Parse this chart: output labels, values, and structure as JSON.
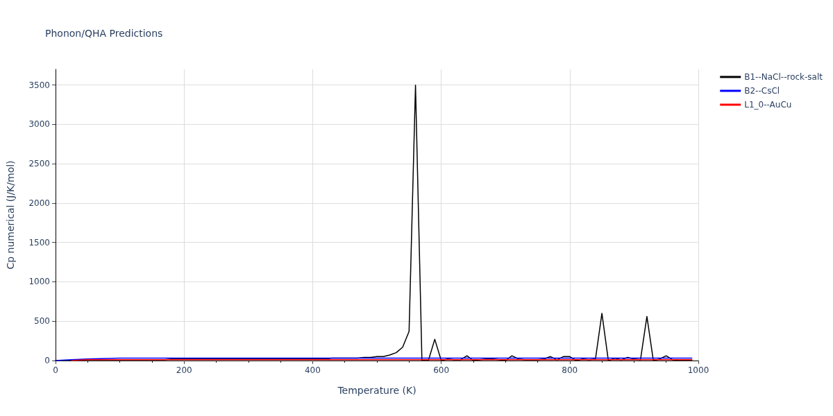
{
  "chart_data": {
    "type": "line",
    "title": "Phonon/QHA Predictions",
    "xlabel": "Temperature (K)",
    "ylabel": "Cp numerical (J/K/mol)",
    "xlim": [
      0,
      1000
    ],
    "xticks": [
      0,
      200,
      400,
      600,
      800,
      1000
    ],
    "ylim": [
      0,
      3700
    ],
    "yticks": [
      0,
      500,
      1000,
      1500,
      2000,
      2500,
      3000,
      3500
    ],
    "grid": true,
    "legend": "top right",
    "marker": "none",
    "line_style": "solid",
    "series": [
      {
        "name": "B1--NaCl--rock-salt",
        "color": "#000000",
        "x": [
          0,
          10,
          20,
          30,
          40,
          50,
          60,
          70,
          80,
          90,
          100,
          110,
          120,
          130,
          140,
          150,
          160,
          170,
          180,
          190,
          200,
          210,
          220,
          230,
          240,
          250,
          260,
          270,
          280,
          290,
          300,
          310,
          320,
          330,
          340,
          350,
          360,
          370,
          380,
          390,
          400,
          410,
          420,
          430,
          440,
          450,
          460,
          470,
          480,
          490,
          500,
          510,
          520,
          530,
          540,
          550,
          560,
          570,
          580,
          590,
          600,
          610,
          620,
          630,
          640,
          650,
          660,
          670,
          680,
          690,
          700,
          710,
          720,
          730,
          740,
          750,
          760,
          770,
          780,
          790,
          800,
          810,
          820,
          830,
          840,
          850,
          860,
          870,
          880,
          890,
          900,
          910,
          920,
          930,
          940,
          950,
          960,
          970,
          980,
          990
        ],
        "values": [
          0,
          0,
          0,
          0,
          10,
          10,
          10,
          10,
          10,
          10,
          10,
          10,
          10,
          10,
          10,
          10,
          10,
          10,
          20,
          20,
          20,
          20,
          20,
          20,
          20,
          20,
          20,
          20,
          20,
          20,
          20,
          20,
          20,
          20,
          20,
          20,
          20,
          20,
          20,
          20,
          20,
          20,
          20,
          30,
          30,
          30,
          30,
          30,
          40,
          40,
          50,
          50,
          70,
          100,
          170,
          370,
          3500,
          0,
          0,
          270,
          0,
          20,
          10,
          10,
          60,
          0,
          10,
          20,
          20,
          10,
          0,
          60,
          20,
          10,
          10,
          10,
          20,
          50,
          10,
          50,
          50,
          0,
          20,
          10,
          20,
          600,
          0,
          30,
          10,
          40,
          20,
          10,
          560,
          0,
          20,
          60,
          10,
          0,
          0,
          0
        ]
      },
      {
        "name": "B2--CsCl",
        "color": "#0000ff",
        "x": [
          0,
          25,
          50,
          100,
          150,
          200,
          300,
          400,
          500,
          600,
          700,
          800,
          900,
          990
        ],
        "values": [
          0,
          10,
          20,
          30,
          30,
          30,
          30,
          30,
          30,
          30,
          30,
          30,
          30,
          30
        ]
      },
      {
        "name": "L1_0--AuCu",
        "color": "#ff0000",
        "x": [
          25,
          50,
          100,
          150,
          200,
          300,
          400,
          500,
          600,
          700,
          800,
          900,
          990
        ],
        "values": [
          0,
          10,
          10,
          10,
          10,
          10,
          10,
          10,
          10,
          10,
          10,
          10,
          10
        ]
      }
    ]
  }
}
